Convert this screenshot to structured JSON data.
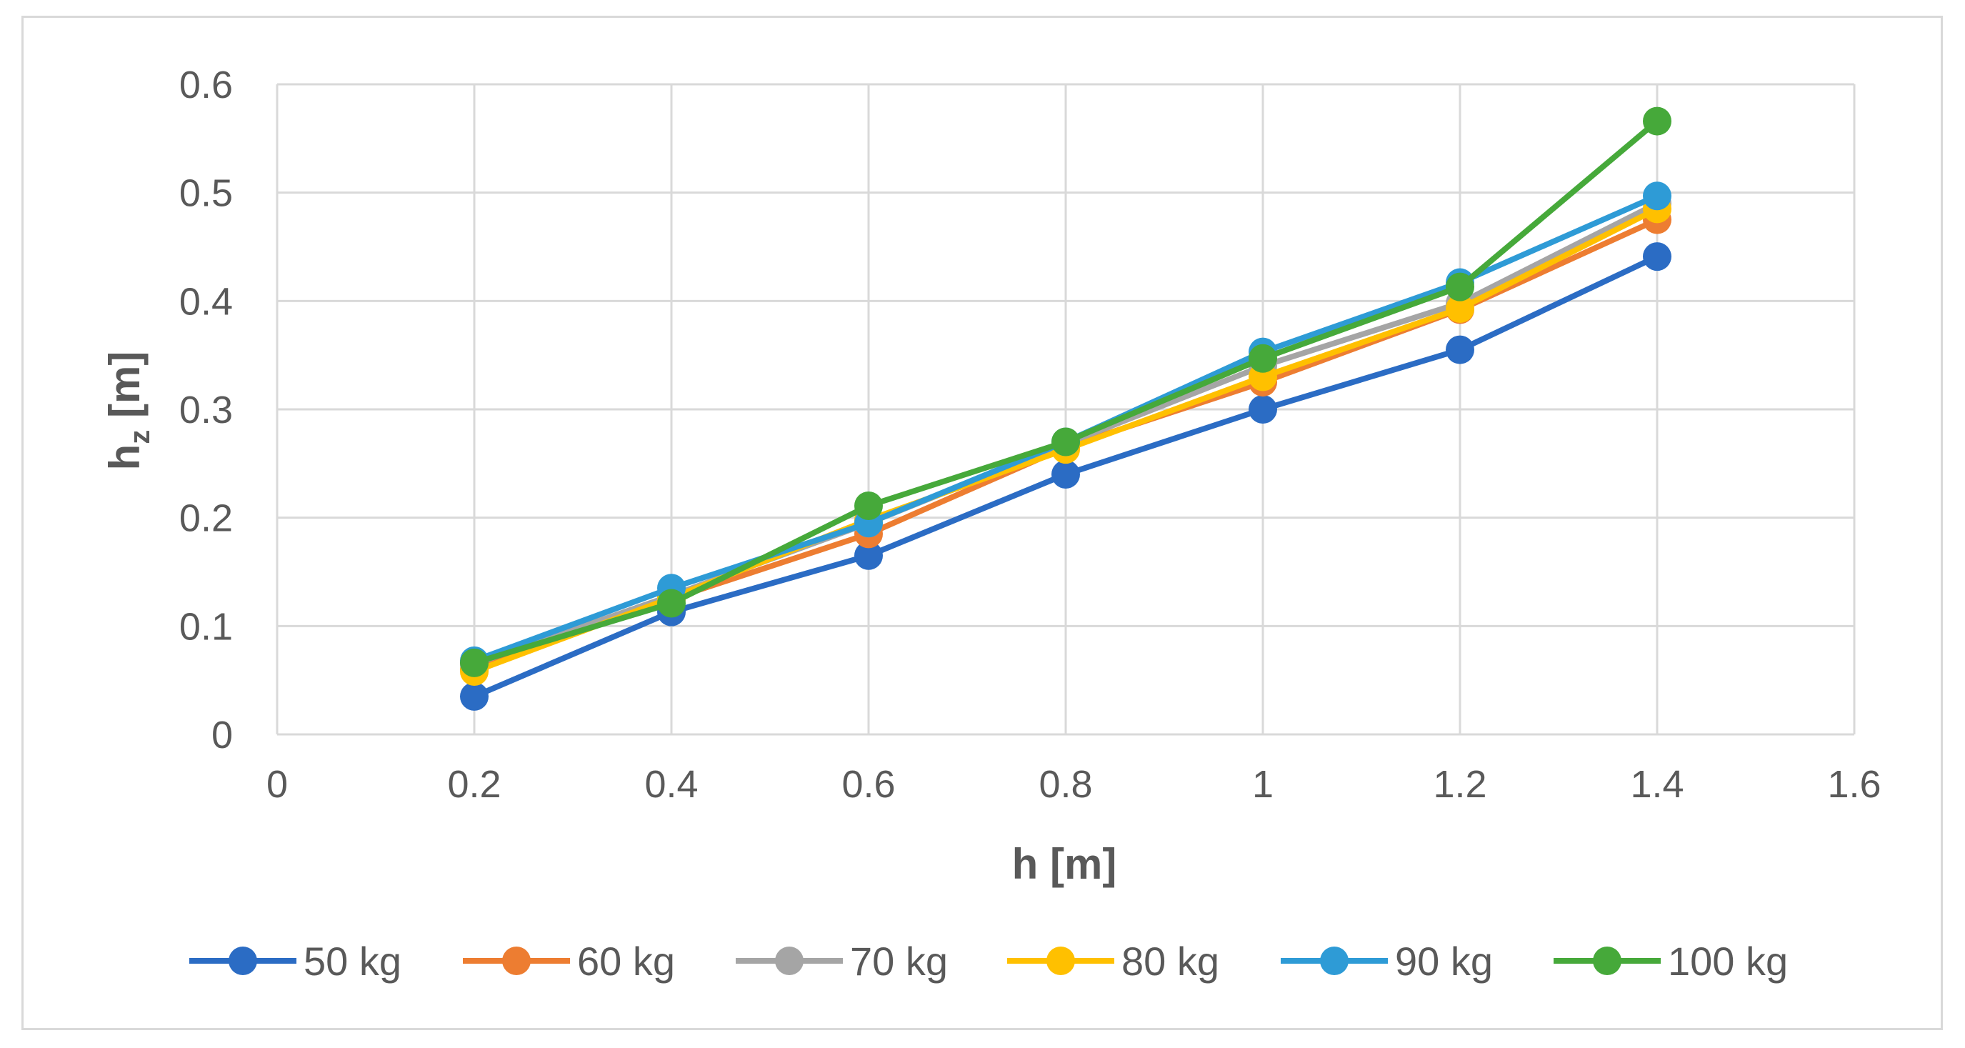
{
  "chart_data": {
    "type": "line",
    "title": "",
    "xlabel": "h [m]",
    "ylabel_main": "h",
    "ylabel_sub": "z",
    "ylabel_unit": " [m]",
    "xlim": [
      0,
      1.6
    ],
    "ylim": [
      0,
      0.6
    ],
    "x_ticks": [
      0,
      0.2,
      0.4,
      0.6,
      0.8,
      1,
      1.2,
      1.4,
      1.6
    ],
    "x_tick_labels": [
      "0",
      "0.2",
      "0.4",
      "0.6",
      "0.8",
      "1",
      "1.2",
      "1.4",
      "1.6"
    ],
    "y_ticks": [
      0,
      0.1,
      0.2,
      0.3,
      0.4,
      0.5,
      0.6
    ],
    "y_tick_labels": [
      "0",
      "0.1",
      "0.2",
      "0.3",
      "0.4",
      "0.5",
      "0.6"
    ],
    "grid": true,
    "legend_position": "bottom",
    "x": [
      0.2,
      0.4,
      0.6,
      0.8,
      1.0,
      1.2,
      1.4
    ],
    "series": [
      {
        "name": "50 kg",
        "color": "#2b6cc4",
        "values": [
          0.035,
          0.113,
          0.165,
          0.24,
          0.3,
          0.355,
          0.441
        ]
      },
      {
        "name": "60 kg",
        "color": "#ed7d31",
        "values": [
          0.06,
          0.125,
          0.185,
          0.265,
          0.325,
          0.392,
          0.475
        ]
      },
      {
        "name": "70 kg",
        "color": "#a5a5a5",
        "values": [
          0.065,
          0.128,
          0.195,
          0.268,
          0.34,
          0.398,
          0.49
        ]
      },
      {
        "name": "80 kg",
        "color": "#ffc000",
        "values": [
          0.058,
          0.126,
          0.198,
          0.263,
          0.33,
          0.393,
          0.485
        ]
      },
      {
        "name": "90 kg",
        "color": "#2e9bd6",
        "values": [
          0.068,
          0.135,
          0.195,
          0.27,
          0.353,
          0.417,
          0.497
        ]
      },
      {
        "name": "100 kg",
        "color": "#46a93a",
        "values": [
          0.066,
          0.121,
          0.211,
          0.27,
          0.347,
          0.413,
          0.566
        ]
      }
    ]
  }
}
